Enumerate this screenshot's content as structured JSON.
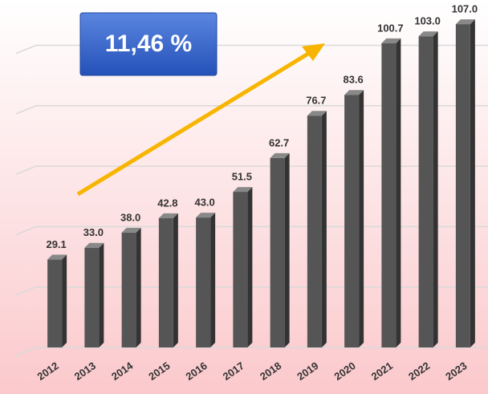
{
  "chart_data": {
    "type": "bar",
    "categories": [
      "2012",
      "2013",
      "2014",
      "2015",
      "2016",
      "2017",
      "2018",
      "2019",
      "2020",
      "2021",
      "2022",
      "2023"
    ],
    "values": [
      29.1,
      33.0,
      38.0,
      42.8,
      43.0,
      51.5,
      62.7,
      76.7,
      83.6,
      100.7,
      103.0,
      107.0
    ],
    "value_labels": [
      "29.1",
      "33.0",
      "38.0",
      "42.8",
      "43.0",
      "51.5",
      "62.7",
      "76.7",
      "83.6",
      "100.7",
      "103.0",
      "107.0"
    ],
    "color": "#555555",
    "ylim": [
      0,
      115
    ],
    "yticks": [
      0,
      20,
      40,
      60,
      80,
      100
    ],
    "grid": true,
    "annotation": "11,46 %"
  }
}
